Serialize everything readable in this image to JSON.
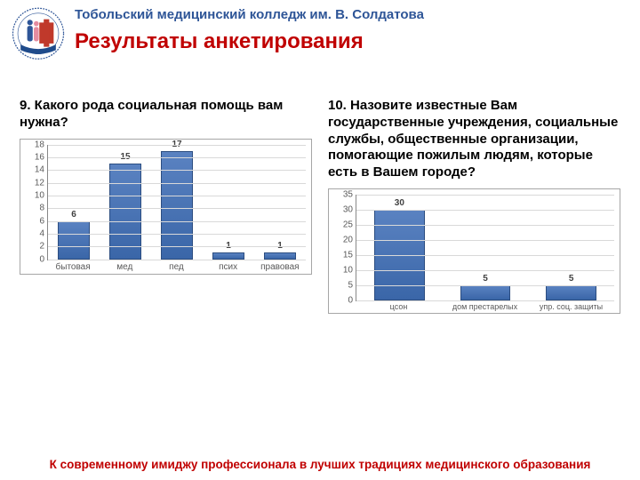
{
  "header": {
    "college": "Тобольский медицинский колледж им. В. Солдатова",
    "title": "Результаты анкетирования"
  },
  "left": {
    "question": "9. Какого рода социальная помощь вам нужна?",
    "chart": {
      "type": "bar",
      "categories": [
        "бытовая",
        "мед",
        "пед",
        "псих",
        "правовая"
      ],
      "values": [
        6,
        15,
        17,
        1,
        1
      ],
      "ylim": [
        0,
        18
      ],
      "ytick_step": 2,
      "bar_color": "#3a66a8",
      "bar_border": "#2c4d80",
      "grid_color": "#d9d9d9",
      "background": "#ffffff",
      "label_fontsize": 10,
      "tick_fontsize": 10
    }
  },
  "right": {
    "question": "10. Назовите известные Вам государственные учреждения, социальные службы, общественные организации, помогающие пожилым людям, которые есть в Вашем городе?",
    "chart": {
      "type": "bar",
      "categories": [
        "цсон",
        "дом престарелых",
        "упр. соц. защиты"
      ],
      "values": [
        30,
        5,
        5
      ],
      "ylim": [
        0,
        35
      ],
      "ytick_step": 5,
      "bar_color": "#3a66a8",
      "bar_border": "#2c4d80",
      "grid_color": "#d9d9d9",
      "background": "#ffffff",
      "label_fontsize": 10,
      "tick_fontsize": 9
    }
  },
  "footer": "К современному имиджу профессионала в лучших традициях медицинского образования",
  "logo": {
    "outer_color": "#2e5597",
    "red": "#c0392b",
    "blue_fig": "#2e5597",
    "pink_fig": "#e58ca0",
    "banner": "#1f4b8b"
  }
}
